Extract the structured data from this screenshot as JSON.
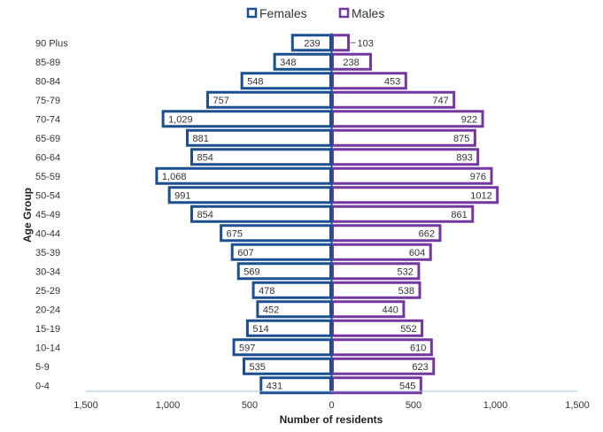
{
  "chart_data": {
    "type": "bar",
    "orientation": "horizontal",
    "subtype": "population-pyramid",
    "categories": [
      "0-4",
      "5-9",
      "10-14",
      "15-19",
      "20-24",
      "25-29",
      "30-34",
      "35-39",
      "40-44",
      "45-49",
      "50-54",
      "55-59",
      "60-64",
      "65-69",
      "70-74",
      "75-79",
      "80-84",
      "85-89",
      "90 Plus"
    ],
    "series": [
      {
        "name": "Females",
        "color": "#1b4f8f",
        "values": [
          431,
          535,
          597,
          514,
          452,
          478,
          569,
          607,
          675,
          854,
          991,
          1068,
          854,
          881,
          1029,
          757,
          548,
          348,
          239
        ],
        "labels": [
          "431",
          "535",
          "597",
          "514",
          "452",
          "478",
          "569",
          "607",
          "675",
          "854",
          "991",
          "1,068",
          "854",
          "881",
          "1,029",
          "757",
          "548",
          "348",
          "239"
        ]
      },
      {
        "name": "Males",
        "color": "#7436a0",
        "values": [
          545,
          623,
          610,
          552,
          440,
          538,
          532,
          604,
          662,
          861,
          1012,
          976,
          893,
          875,
          922,
          747,
          453,
          238,
          103
        ],
        "labels": [
          "545",
          "623",
          "610",
          "552",
          "440",
          "538",
          "532",
          "604",
          "662",
          "861",
          "1012",
          "976",
          "893",
          "875",
          "922",
          "747",
          "453",
          "238",
          "103"
        ]
      }
    ],
    "xlabel": "Number of residents",
    "ylabel": "Age Group",
    "xlim": [
      -1500,
      1500
    ],
    "xticks": [
      {
        "value": -1500,
        "label": "1,500"
      },
      {
        "value": -1000,
        "label": "1,000"
      },
      {
        "value": -500,
        "label": "500"
      },
      {
        "value": 0,
        "label": "0"
      },
      {
        "value": 500,
        "label": "500"
      },
      {
        "value": 1000,
        "label": "1,000"
      },
      {
        "value": 1500,
        "label": "1,500"
      }
    ],
    "legend": "top-center",
    "grid": false
  }
}
